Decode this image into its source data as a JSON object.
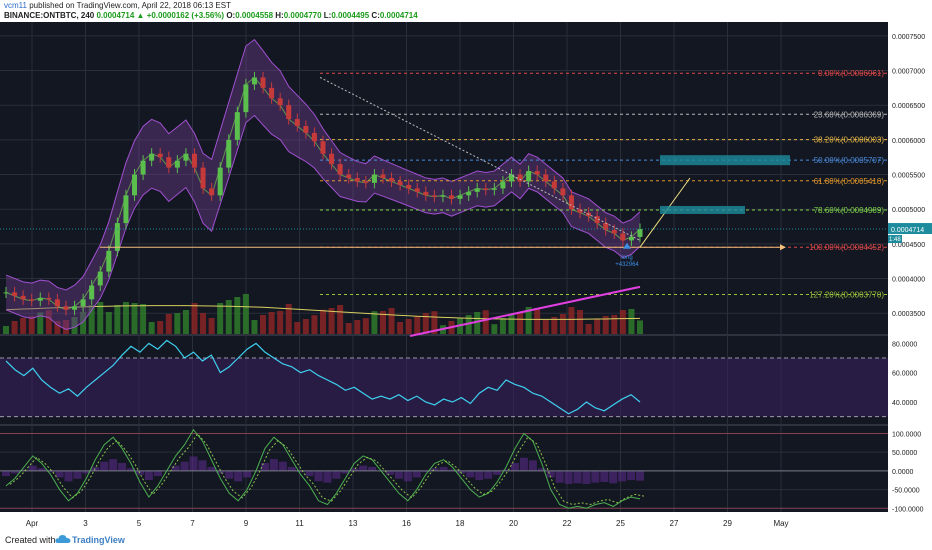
{
  "header": {
    "author": "vcm11",
    "published_text": "published on TradingView.com, April 22, 2018 06:13 EST",
    "symbol": "BINANCE:ONTBTC, 240",
    "last": "0.0004714",
    "change": "+0.0000162 (+3.56%)",
    "open_label": "O:",
    "open": "0.0004558",
    "high_label": "H:",
    "high": "0.0004770",
    "low_label": "L:",
    "low": "0.0004495",
    "close_label": "C:",
    "close": "0.0004714",
    "up_arrow": "▲"
  },
  "footer": {
    "created_with": "Created with",
    "brand": "TradingView"
  },
  "colors": {
    "background": "#131722",
    "grid": "#2a2e39",
    "up_candle": "#5bbf4e",
    "down_candle": "#c63a3a",
    "bollinger_fill": "#6b3b8a",
    "rsi_line": "#3fd0f0",
    "ma_line": "#d8d060",
    "trend_line": "#e040e0",
    "horizontal_line": "#f5c07a",
    "axis_text": "#222222"
  },
  "icons": {
    "logo": "tradingview-cloud-icon",
    "order_arrow": "arrow-up-icon"
  },
  "chart_data": [
    {
      "type": "candlestick",
      "title": "BINANCE:ONTBTC, 240",
      "ylim": [
        0.00032,
        0.00077
      ],
      "y_ticks": [
        "0.0007500",
        "0.0007000",
        "0.0006500",
        "0.0006000",
        "0.0005500",
        "0.0005000",
        "0.0004500",
        "0.0004000",
        "0.0003500"
      ],
      "x_ticks": [
        "Apr",
        "3",
        "5",
        "7",
        "9",
        "11",
        "13",
        "16",
        "18",
        "20",
        "22",
        "25",
        "27",
        "29",
        "May"
      ],
      "price_label": "0.0004714",
      "price_label_2": "0.0004500",
      "badge": "1:48",
      "close_series": [
        0.00038,
        0.000375,
        0.00037,
        0.000368,
        0.000372,
        0.00037,
        0.00036,
        0.000355,
        0.00036,
        0.00037,
        0.00039,
        0.00041,
        0.00044,
        0.00048,
        0.00052,
        0.00055,
        0.00057,
        0.00058,
        0.000575,
        0.00056,
        0.00057,
        0.00058,
        0.00056,
        0.00053,
        0.00052,
        0.00056,
        0.0006,
        0.00064,
        0.00068,
        0.00069,
        0.000675,
        0.00066,
        0.00065,
        0.00063,
        0.00062,
        0.00061,
        0.000598,
        0.00058,
        0.000565,
        0.00055,
        0.000545,
        0.00054,
        0.000538,
        0.00055,
        0.000545,
        0.00054,
        0.000535,
        0.00053,
        0.000525,
        0.00052,
        0.000518,
        0.00052,
        0.000515,
        0.00052,
        0.000525,
        0.00053,
        0.000528,
        0.00053,
        0.00054,
        0.00055,
        0.00054,
        0.000555,
        0.00055,
        0.00054,
        0.00053,
        0.00052,
        0.0005,
        0.000495,
        0.00049,
        0.00048,
        0.00047,
        0.000465,
        0.000455,
        0.00046,
        0.0004714
      ],
      "fib_levels": [
        {
          "label": "0.00%(0.0006961)",
          "value": 0.0006961,
          "color": "#e04848"
        },
        {
          "label": "23.60%(0.0006369)",
          "value": 0.0006369,
          "color": "#b8b8b8"
        },
        {
          "label": "38.20%(0.0006003)",
          "value": 0.0006003,
          "color": "#e6b544"
        },
        {
          "label": "50.00%(0.0005707)",
          "value": 0.0005707,
          "color": "#4a8ad8"
        },
        {
          "label": "61.80%(0.0005410)",
          "value": 0.000541,
          "color": "#e0962a"
        },
        {
          "label": "78.60%(0.0004989)",
          "value": 0.0004989,
          "color": "#7ed04a"
        },
        {
          "label": "100.00%(0.0004452)",
          "value": 0.0004452,
          "color": "#e04848"
        },
        {
          "label": "127.20%(0.0003770)",
          "value": 0.000377,
          "color": "#9ac43a"
        }
      ],
      "annotation": {
        "text": "long",
        "value": "+432964"
      }
    },
    {
      "type": "line",
      "title": "",
      "ylim": [
        25,
        85
      ],
      "y_ticks": [
        "80.0000",
        "60.0000",
        "40.0000"
      ],
      "bands": [
        70,
        30
      ],
      "values": [
        68,
        62,
        58,
        63,
        55,
        50,
        46,
        49,
        44,
        50,
        55,
        60,
        65,
        72,
        78,
        74,
        80,
        76,
        82,
        78,
        70,
        74,
        68,
        72,
        60,
        64,
        70,
        76,
        80,
        74,
        70,
        66,
        64,
        60,
        62,
        58,
        55,
        52,
        48,
        50,
        46,
        42,
        44,
        42,
        45,
        41,
        44,
        40,
        38,
        42,
        40,
        43,
        39,
        46,
        50,
        48,
        55,
        52,
        50,
        46,
        44,
        40,
        36,
        32,
        35,
        40,
        36,
        34,
        38,
        42,
        45,
        40
      ]
    },
    {
      "type": "line",
      "title": "",
      "ylim": [
        -110,
        120
      ],
      "y_ticks": [
        "100.0000",
        "50.0000",
        "0.0000",
        "-50.0000",
        "-100.0000"
      ],
      "values": [
        -40,
        -20,
        10,
        40,
        20,
        -10,
        -50,
        -80,
        -60,
        -20,
        30,
        70,
        90,
        60,
        20,
        -30,
        -70,
        -40,
        0,
        40,
        70,
        110,
        80,
        30,
        -20,
        -60,
        -80,
        -50,
        0,
        60,
        90,
        70,
        30,
        -10,
        -40,
        -80,
        -90,
        -60,
        -20,
        20,
        40,
        30,
        0,
        -30,
        -60,
        -80,
        -50,
        -10,
        20,
        30,
        10,
        -20,
        -50,
        -70,
        -60,
        -30,
        10,
        60,
        100,
        80,
        20,
        -50,
        -90,
        -100,
        -95,
        -100,
        -90,
        -85,
        -95,
        -80,
        -70,
        -75
      ]
    }
  ]
}
